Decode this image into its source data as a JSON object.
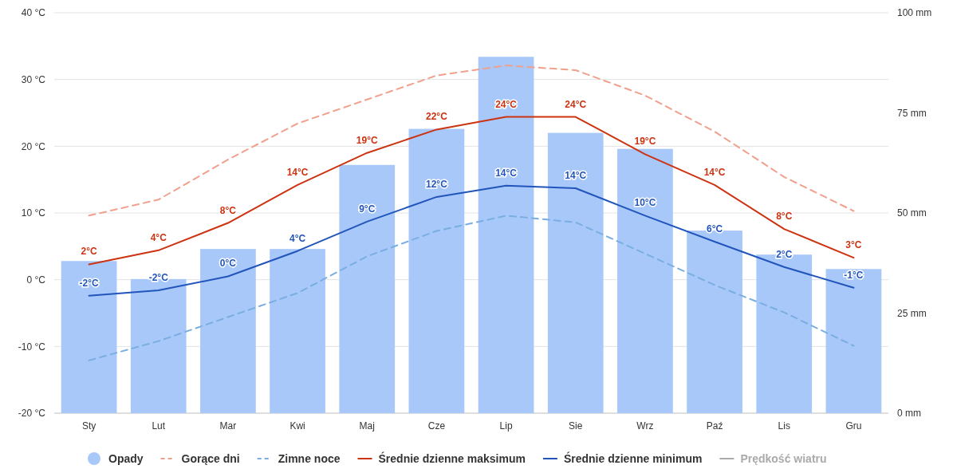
{
  "chart_data": {
    "type": "bar",
    "categories": [
      "Sty",
      "Lut",
      "Mar",
      "Kwi",
      "Maj",
      "Cze",
      "Lip",
      "Sie",
      "Wrz",
      "Paź",
      "Lis",
      "Gru"
    ],
    "series": [
      {
        "name": "Opady",
        "axis": "y2",
        "color": "#a8c8fa",
        "values": [
          38,
          33.5,
          41,
          41,
          62,
          71,
          89,
          70,
          66,
          45.6,
          39.6,
          36
        ]
      },
      {
        "name": "Gorące dni",
        "type": "line",
        "line_style": "dashed",
        "color": "#f0a08c",
        "values": [
          9.6,
          12,
          18,
          23.4,
          27,
          30.6,
          32.1,
          31.4,
          27.6,
          22.2,
          15.4,
          10.3
        ]
      },
      {
        "name": "Zimne noce",
        "type": "line",
        "line_style": "dashed",
        "color": "#7aaee0",
        "values": [
          -12.1,
          -9.2,
          -5.6,
          -2,
          3.5,
          7.3,
          9.6,
          8.6,
          3.9,
          -0.8,
          -4.9,
          -9.9
        ]
      },
      {
        "name": "Średnie dzienne maksimum",
        "type": "line",
        "line_style": "solid",
        "color": "#cc3311",
        "values": [
          2.3,
          4.4,
          8.5,
          14.2,
          19,
          22.5,
          24.4,
          24.4,
          18.8,
          14.2,
          7.6,
          3.3
        ],
        "value_labels": [
          "2°C",
          "4°C",
          "8°C",
          "14°C",
          "19°C",
          "22°C",
          "24°C",
          "24°C",
          "19°C",
          "14°C",
          "8°C",
          "3°C"
        ]
      },
      {
        "name": "Średnie dzienne minimum",
        "type": "line",
        "line_style": "solid",
        "color": "#2255bb",
        "values": [
          -2.4,
          -1.6,
          0.5,
          4.3,
          8.7,
          12.4,
          14.1,
          13.7,
          9.6,
          5.7,
          1.9,
          -1.2
        ],
        "value_labels": [
          "-2°C",
          "-2°C",
          "0°C",
          "4°C",
          "9°C",
          "12°C",
          "14°C",
          "14°C",
          "10°C",
          "6°C",
          "2°C",
          "-1°C"
        ]
      },
      {
        "name": "Prędkość wiatru",
        "type": "line",
        "line_style": "solid",
        "color": "#aaaaaa",
        "values": [
          null,
          null,
          null,
          null,
          null,
          null,
          null,
          null,
          null,
          null,
          null,
          null
        ]
      }
    ],
    "ylim": [
      -20,
      40
    ],
    "yticks": [
      {
        "value": -20,
        "label": "-20 °C"
      },
      {
        "value": -10,
        "label": "-10 °C"
      },
      {
        "value": 0,
        "label": "0 °C"
      },
      {
        "value": 10,
        "label": "10 °C"
      },
      {
        "value": 20,
        "label": "20 °C"
      },
      {
        "value": 30,
        "label": "30 °C"
      },
      {
        "value": 40,
        "label": "40 °C"
      }
    ],
    "y2lim": [
      0,
      100
    ],
    "y2ticks": [
      {
        "value": 0,
        "label": "0 mm"
      },
      {
        "value": 25,
        "label": "25 mm"
      },
      {
        "value": 50,
        "label": "50 mm"
      },
      {
        "value": 75,
        "label": "75 mm"
      },
      {
        "value": 100,
        "label": "100 mm"
      }
    ],
    "grid": "y",
    "legend": "bottom"
  }
}
